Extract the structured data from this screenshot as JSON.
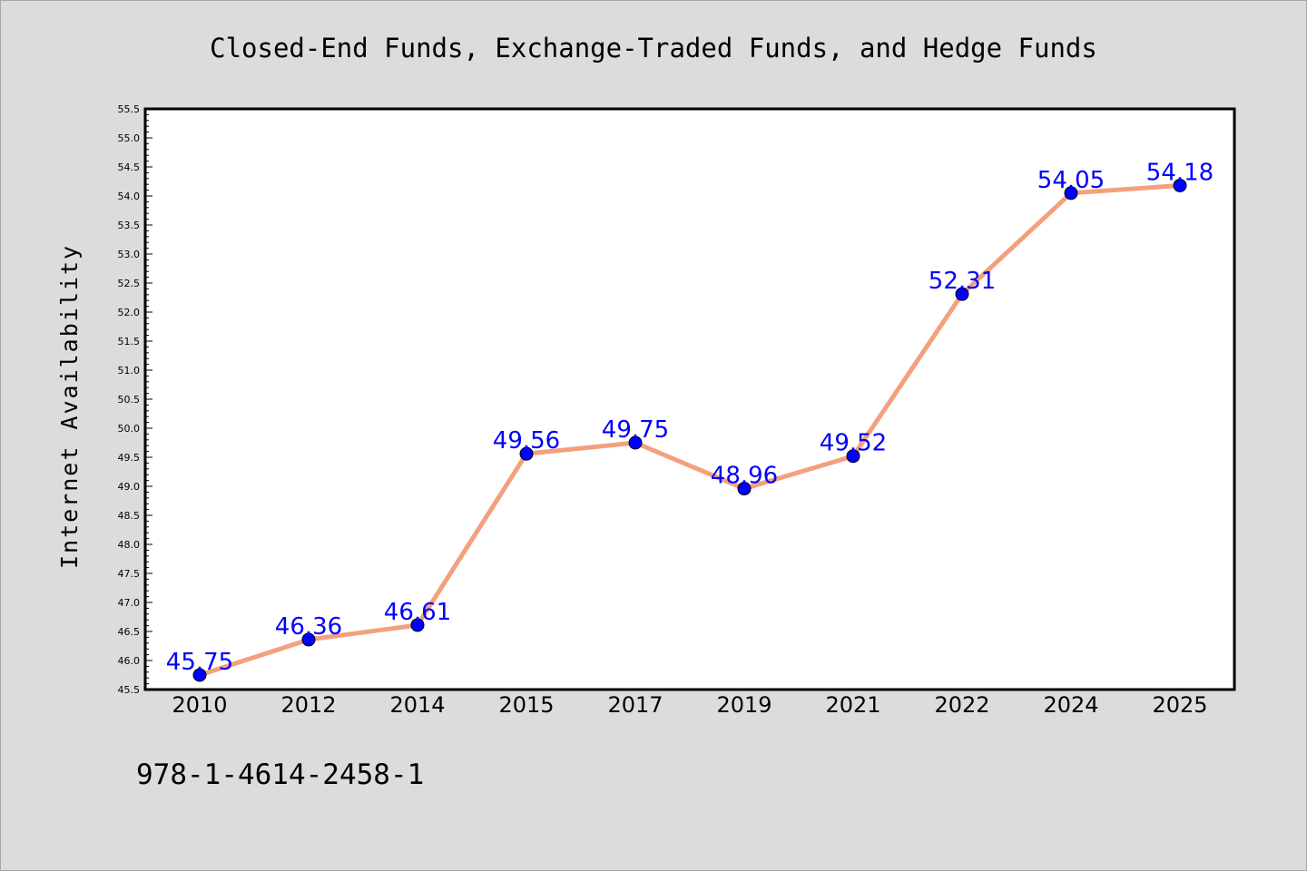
{
  "chart_data": {
    "type": "line",
    "title": "Closed-End Funds, Exchange-Traded Funds, and Hedge Funds",
    "xlabel": "",
    "ylabel": "Internet Availability",
    "categories": [
      "2010",
      "2012",
      "2014",
      "2015",
      "2017",
      "2019",
      "2021",
      "2022",
      "2024",
      "2025"
    ],
    "values": [
      45.75,
      46.36,
      46.61,
      49.56,
      49.75,
      48.96,
      49.52,
      52.31,
      54.05,
      54.18
    ],
    "data_labels": [
      "45.75",
      "46.36",
      "46.61",
      "49.56",
      "49.75",
      "48.96",
      "49.52",
      "52.31",
      "54.05",
      "54.18"
    ],
    "ylim": [
      45.5,
      55.5
    ],
    "ytick_step": 0.5,
    "grid": false,
    "legend": "none",
    "colors": {
      "line": "#f4a07e",
      "marker": "#0000ff",
      "data_label": "#0000ff",
      "plot_background": "#ffffff",
      "page_background": "#dcdcdc"
    }
  },
  "footer": {
    "isbn": "978-1-4614-2458-1"
  }
}
